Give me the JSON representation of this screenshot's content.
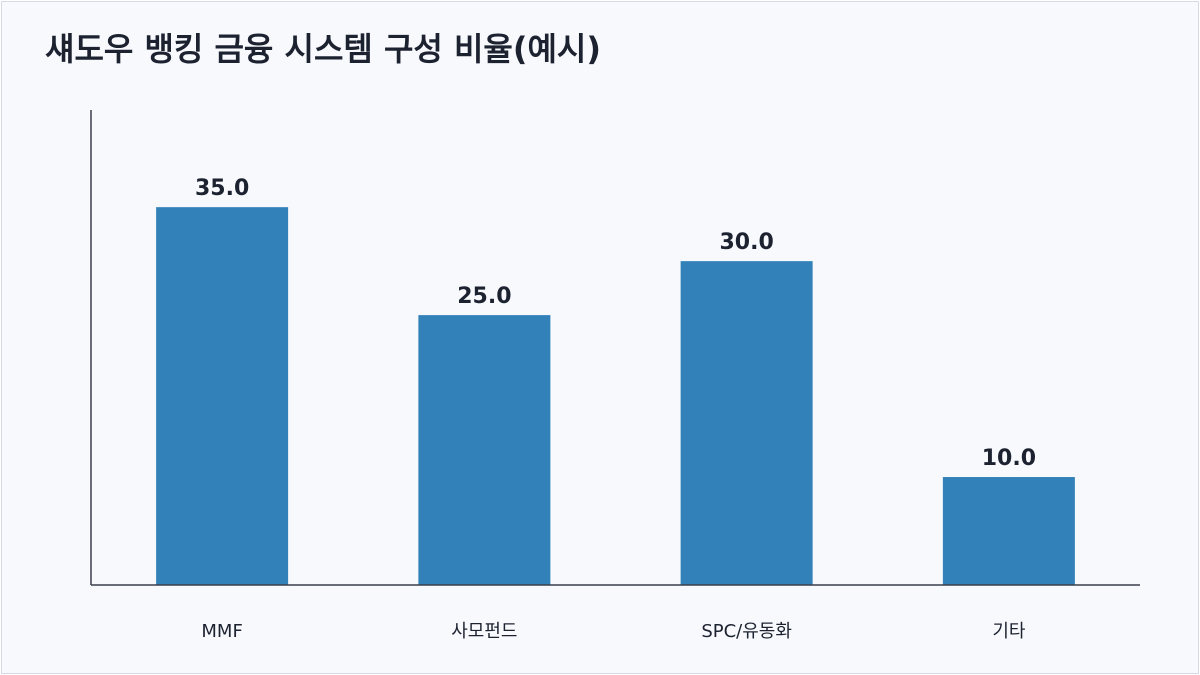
{
  "chart_data": {
    "type": "bar",
    "title": "섀도우 뱅킹 금융 시스템 구성 비율(예시)",
    "xlabel": "",
    "ylabel": "",
    "categories": [
      "MMF",
      "사모펀드",
      "SPC/유동화",
      "기타"
    ],
    "values": [
      35.0,
      25.0,
      30.0,
      10.0
    ],
    "value_labels": [
      "35.0",
      "25.0",
      "30.0",
      "10.0"
    ],
    "ylim": [
      0,
      44
    ],
    "grid": false,
    "legend": "none",
    "colors": {
      "bar": "#3281b8",
      "axis": "#3a3f4b",
      "text": "#1d2230",
      "background": "#f7f9fd",
      "frame_border": "#d5dbe4"
    }
  }
}
